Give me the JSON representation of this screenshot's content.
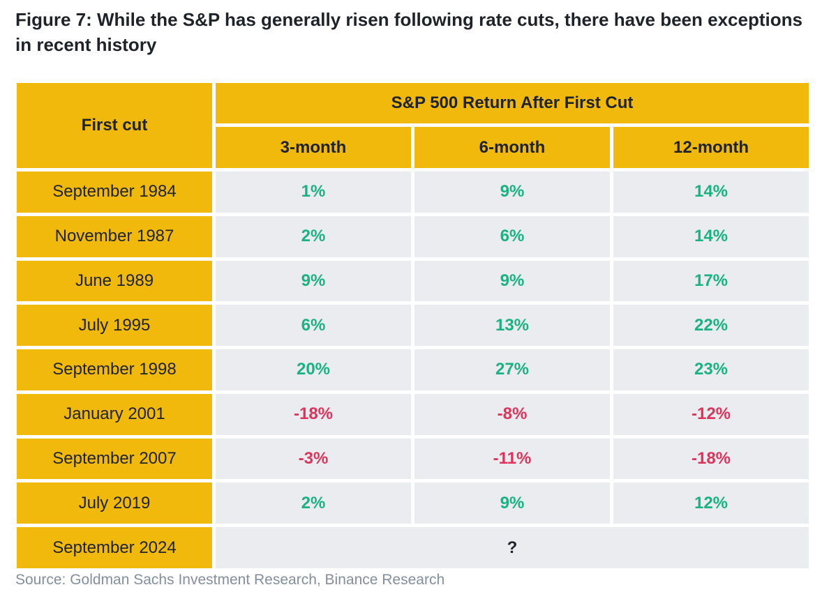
{
  "title": "Figure 7: While the S&P has generally risen following rate cuts, there have been exceptions in recent history",
  "colors": {
    "header_bg": "#f0b90b",
    "cell_bg": "#eaecef",
    "positive": "#19b381",
    "negative": "#dd345b"
  },
  "table": {
    "first_col_header": "First cut",
    "group_header": "S&P 500 Return After First Cut",
    "columns": [
      "3-month",
      "6-month",
      "12-month"
    ],
    "rows": [
      {
        "label": "September 1984",
        "values": [
          "1%",
          "9%",
          "14%"
        ]
      },
      {
        "label": "November 1987",
        "values": [
          "2%",
          "6%",
          "14%"
        ]
      },
      {
        "label": "June 1989",
        "values": [
          "9%",
          "9%",
          "17%"
        ]
      },
      {
        "label": "July 1995",
        "values": [
          "6%",
          "13%",
          "22%"
        ]
      },
      {
        "label": "September 1998",
        "values": [
          "20%",
          "27%",
          "23%"
        ]
      },
      {
        "label": "January 2001",
        "values": [
          "-18%",
          "-8%",
          "-12%"
        ]
      },
      {
        "label": "September 2007",
        "values": [
          "-3%",
          "-11%",
          "-18%"
        ]
      },
      {
        "label": "July 2019",
        "values": [
          "2%",
          "9%",
          "12%"
        ]
      }
    ],
    "last_row": {
      "label": "September 2024",
      "value": "?"
    }
  },
  "chart_data": {
    "type": "table",
    "title": "Figure 7: While the S&P has generally risen following rate cuts, there have been exceptions in recent history",
    "categories": [
      "September 1984",
      "November 1987",
      "June 1989",
      "July 1995",
      "September 1998",
      "January 2001",
      "September 2007",
      "July 2019",
      "September 2024"
    ],
    "series": [
      {
        "name": "3-month",
        "values": [
          1,
          2,
          9,
          6,
          20,
          -18,
          -3,
          2,
          null
        ]
      },
      {
        "name": "6-month",
        "values": [
          9,
          6,
          9,
          13,
          27,
          -8,
          -11,
          9,
          null
        ]
      },
      {
        "name": "12-month",
        "values": [
          14,
          14,
          17,
          22,
          23,
          -12,
          -18,
          12,
          null
        ]
      }
    ]
  },
  "source": "Source: Goldman Sachs Investment Research, Binance Research"
}
